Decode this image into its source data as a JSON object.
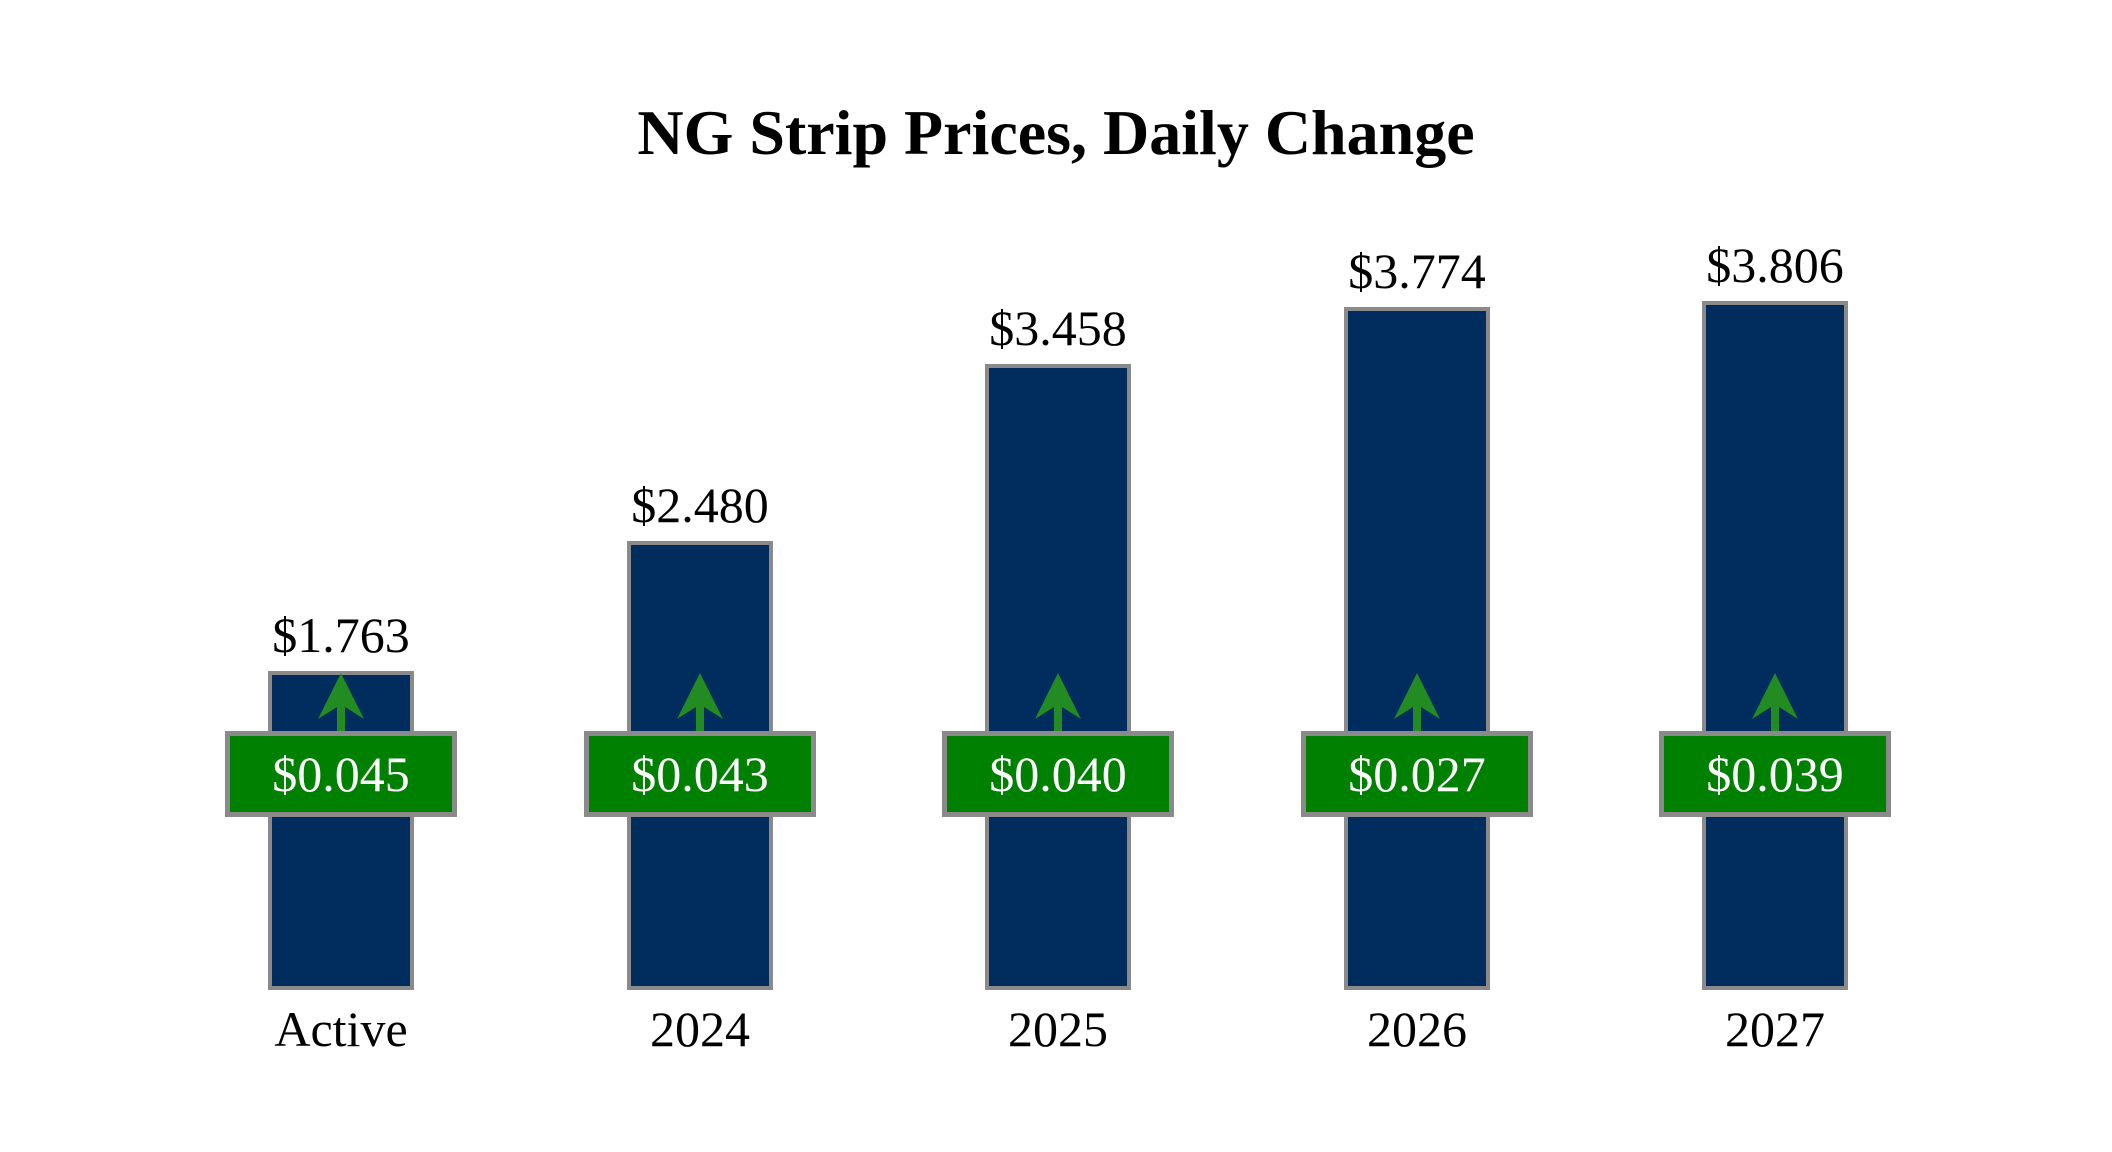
{
  "chart": {
    "title": "NG Strip Prices, Daily Change"
  },
  "chart_data": {
    "type": "bar",
    "title": "NG Strip Prices, Daily Change",
    "categories": [
      "Active",
      "2024",
      "2025",
      "2026",
      "2027"
    ],
    "series": [
      {
        "name": "NG Strip Price",
        "unit": "$",
        "values": [
          1.763,
          2.48,
          3.458,
          3.774,
          3.806
        ],
        "labels": [
          "$1.763",
          "$2.480",
          "$3.458",
          "$3.774",
          "$3.806"
        ]
      },
      {
        "name": "Daily Change",
        "unit": "$",
        "values": [
          0.045,
          0.043,
          0.04,
          0.027,
          0.039
        ],
        "labels": [
          "$0.045",
          "$0.043",
          "$0.040",
          "$0.027",
          "$0.039"
        ],
        "direction": "up"
      }
    ],
    "ylim": [
      0,
      4.2
    ],
    "grid": false,
    "legend": "none",
    "axes_visible": false
  },
  "colors": {
    "background": "#ffffff",
    "title_color": "#000000",
    "label_color": "#000000",
    "bar_fill": "#012d5e",
    "bar_border": "#8a8a8a",
    "badge_fill": "#008000",
    "badge_border": "#8a8a8a",
    "badge_text": "#ffffff",
    "arrow_green": "#228b22"
  }
}
